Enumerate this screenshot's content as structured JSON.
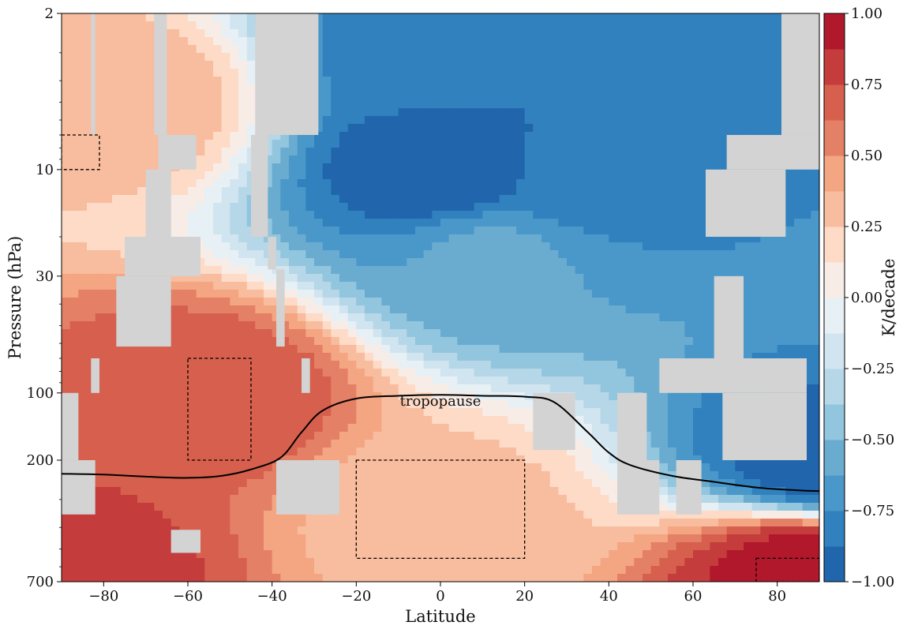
{
  "chart_data": {
    "type": "heatmap",
    "title": "",
    "xlabel": "Latitude",
    "ylabel": "Pressure (hPa)",
    "xlim": [
      -90,
      90
    ],
    "ylim_log": [
      2,
      700
    ],
    "y_scale": "log",
    "y_inverted": true,
    "x_ticks": [
      -80,
      -60,
      -40,
      -20,
      0,
      20,
      40,
      60,
      80
    ],
    "x_tick_labels": [
      "−80",
      "−60",
      "−40",
      "−20",
      "0",
      "20",
      "40",
      "60",
      "80"
    ],
    "y_ticks": [
      2,
      10,
      30,
      100,
      200,
      700
    ],
    "y_tick_labels": [
      "2",
      "10",
      "30",
      "100",
      "200",
      "700"
    ],
    "colorbar": {
      "label": "K/decade",
      "min": -1.0,
      "max": 1.0,
      "levels": 16,
      "ticks": [
        1.0,
        0.75,
        0.5,
        0.25,
        0.0,
        -0.25,
        -0.5,
        -0.75,
        -1.0
      ],
      "tick_labels": [
        "1.00",
        "0.75",
        "0.50",
        "0.25",
        "0.00",
        "−0.25",
        "−0.50",
        "−0.75",
        "−1.00"
      ],
      "colormap": "RdBu_r",
      "colors": [
        "#2166ac",
        "#3081bd",
        "#4a98c9",
        "#6aacd0",
        "#92c5de",
        "#b5d7e8",
        "#d1e5f0",
        "#e7f0f5",
        "#f8ece6",
        "#fddbc7",
        "#f8bc9f",
        "#f4a582",
        "#e48066",
        "#d6604d",
        "#c43c3c",
        "#b2182b"
      ]
    },
    "tropopause": {
      "label": "tropopause",
      "points": [
        [
          -90,
          230
        ],
        [
          -80,
          232
        ],
        [
          -70,
          237
        ],
        [
          -60,
          240
        ],
        [
          -52,
          235
        ],
        [
          -45,
          220
        ],
        [
          -38,
          195
        ],
        [
          -33,
          150
        ],
        [
          -28,
          120
        ],
        [
          -20,
          106
        ],
        [
          -10,
          103
        ],
        [
          0,
          102
        ],
        [
          10,
          103
        ],
        [
          20,
          104
        ],
        [
          27,
          110
        ],
        [
          35,
          150
        ],
        [
          40,
          185
        ],
        [
          45,
          210
        ],
        [
          55,
          235
        ],
        [
          65,
          250
        ],
        [
          75,
          265
        ],
        [
          85,
          273
        ],
        [
          90,
          275
        ]
      ]
    },
    "field_centers": [
      {
        "lat": 0,
        "p": 10,
        "value": -1.0
      },
      {
        "lat": 33,
        "p": 10,
        "value": -0.85
      },
      {
        "lat": -5,
        "p": 3,
        "value": -0.8
      },
      {
        "lat": 12,
        "p": 25,
        "value": -0.6
      },
      {
        "lat": -55,
        "p": 100,
        "value": 0.75
      },
      {
        "lat": -75,
        "p": 5,
        "value": 0.35
      },
      {
        "lat": 85,
        "p": 600,
        "value": 0.95
      },
      {
        "lat": -88,
        "p": 680,
        "value": 0.8
      },
      {
        "lat": 88,
        "p": 205,
        "value": -0.95
      },
      {
        "lat": 0,
        "p": 350,
        "value": 0.3
      }
    ],
    "boxes": [
      {
        "lat": [
          -90,
          -81
        ],
        "p": [
          7,
          10
        ]
      },
      {
        "lat": [
          -60,
          -45
        ],
        "p": [
          70,
          200
        ]
      },
      {
        "lat": [
          -20,
          20
        ],
        "p": [
          200,
          550
        ]
      },
      {
        "lat": [
          75,
          90
        ],
        "p": [
          550,
          700
        ]
      }
    ],
    "missing_regions": [
      {
        "lat": [
          -83,
          -82
        ],
        "p": [
          2,
          7
        ]
      },
      {
        "lat": [
          -68,
          -65
        ],
        "p": [
          2,
          7
        ]
      },
      {
        "lat": [
          -67,
          -58
        ],
        "p": [
          7,
          10
        ]
      },
      {
        "lat": [
          -70,
          -64
        ],
        "p": [
          10,
          20
        ]
      },
      {
        "lat": [
          -75,
          -57
        ],
        "p": [
          20,
          30
        ]
      },
      {
        "lat": [
          -77,
          -64
        ],
        "p": [
          30,
          62
        ]
      },
      {
        "lat": [
          -83,
          -81
        ],
        "p": [
          70,
          100
        ]
      },
      {
        "lat": [
          -90,
          -86
        ],
        "p": [
          100,
          200
        ]
      },
      {
        "lat": [
          -90,
          -82
        ],
        "p": [
          200,
          350
        ]
      },
      {
        "lat": [
          -64,
          -57
        ],
        "p": [
          410,
          520
        ]
      },
      {
        "lat": [
          -44,
          -29
        ],
        "p": [
          2,
          7
        ]
      },
      {
        "lat": [
          -45,
          -41
        ],
        "p": [
          7,
          20
        ]
      },
      {
        "lat": [
          -41,
          -39
        ],
        "p": [
          20,
          28
        ]
      },
      {
        "lat": [
          -39,
          -37
        ],
        "p": [
          28,
          62
        ]
      },
      {
        "lat": [
          -33,
          -31
        ],
        "p": [
          70,
          100
        ]
      },
      {
        "lat": [
          -39,
          -24
        ],
        "p": [
          200,
          350
        ]
      },
      {
        "lat": [
          22,
          32
        ],
        "p": [
          100,
          180
        ]
      },
      {
        "lat": [
          42,
          49
        ],
        "p": [
          100,
          200
        ]
      },
      {
        "lat": [
          42,
          52
        ],
        "p": [
          200,
          350
        ]
      },
      {
        "lat": [
          56,
          62
        ],
        "p": [
          200,
          350
        ]
      },
      {
        "lat": [
          81,
          90
        ],
        "p": [
          2,
          7
        ]
      },
      {
        "lat": [
          68,
          90
        ],
        "p": [
          7,
          10
        ]
      },
      {
        "lat": [
          63,
          82
        ],
        "p": [
          10,
          20
        ]
      },
      {
        "lat": [
          65,
          72
        ],
        "p": [
          30,
          70
        ]
      },
      {
        "lat": [
          52,
          87
        ],
        "p": [
          70,
          100
        ]
      },
      {
        "lat": [
          67,
          87
        ],
        "p": [
          100,
          200
        ]
      }
    ]
  }
}
